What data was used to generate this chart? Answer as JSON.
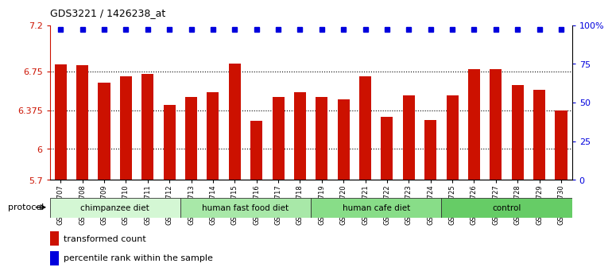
{
  "title": "GDS3221 / 1426238_at",
  "samples": [
    "GSM144707",
    "GSM144708",
    "GSM144709",
    "GSM144710",
    "GSM144711",
    "GSM144712",
    "GSM144713",
    "GSM144714",
    "GSM144715",
    "GSM144716",
    "GSM144717",
    "GSM144718",
    "GSM144719",
    "GSM144720",
    "GSM144721",
    "GSM144722",
    "GSM144723",
    "GSM144724",
    "GSM144725",
    "GSM144726",
    "GSM144727",
    "GSM144728",
    "GSM144729",
    "GSM144730"
  ],
  "bar_values": [
    6.82,
    6.81,
    6.64,
    6.7,
    6.73,
    6.43,
    6.5,
    6.55,
    6.83,
    6.27,
    6.5,
    6.55,
    6.5,
    6.48,
    6.7,
    6.31,
    6.52,
    6.28,
    6.52,
    6.77,
    6.77,
    6.62,
    6.57,
    6.375
  ],
  "groups": [
    {
      "label": "chimpanzee diet",
      "start": 0,
      "end": 6,
      "color": "#d4f7d4"
    },
    {
      "label": "human fast food diet",
      "start": 6,
      "end": 12,
      "color": "#a8e8a8"
    },
    {
      "label": "human cafe diet",
      "start": 12,
      "end": 18,
      "color": "#88dd88"
    },
    {
      "label": "control",
      "start": 18,
      "end": 24,
      "color": "#66cc66"
    }
  ],
  "bar_color": "#cc1100",
  "dot_color": "#0000dd",
  "ylim_left": [
    5.7,
    7.2
  ],
  "ylim_right": [
    0,
    100
  ],
  "yticks_left": [
    5.7,
    6.0,
    6.375,
    6.75,
    7.2
  ],
  "yticks_right": [
    0,
    25,
    50,
    75,
    100
  ],
  "ytick_labels_left": [
    "5.7",
    "6",
    "6.375",
    "6.75",
    "7.2"
  ],
  "ytick_labels_right": [
    "0",
    "25",
    "50",
    "75",
    "100%"
  ],
  "legend_items": [
    {
      "color": "#cc1100",
      "marker": "s",
      "label": "transformed count"
    },
    {
      "color": "#0000dd",
      "marker": "s",
      "label": "percentile rank within the sample"
    }
  ],
  "protocol_label": "protocol",
  "background_color": "#ffffff"
}
